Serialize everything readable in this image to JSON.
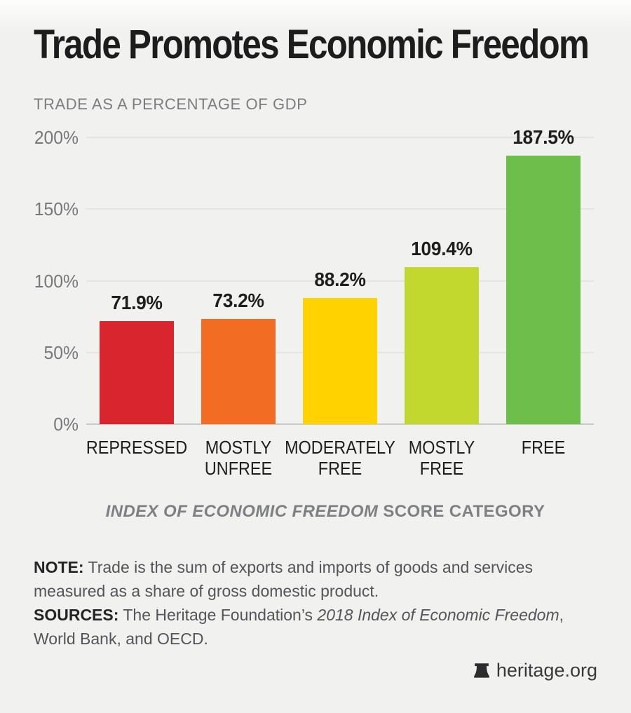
{
  "header": {
    "title": "Trade Promotes Economic Freedom",
    "subtitle": "TRADE AS A PERCENTAGE OF GDP"
  },
  "chart_data": {
    "type": "bar",
    "title": "TRADE AS A PERCENTAGE OF GDP",
    "categories": [
      "REPRESSED",
      "MOSTLY\nUNFREE",
      "MODERATELY\nFREE",
      "MOSTLY\nFREE",
      "FREE"
    ],
    "values": [
      71.9,
      73.2,
      88.2,
      109.4,
      187.5
    ],
    "value_labels": [
      "71.9%",
      "73.2%",
      "88.2%",
      "109.4%",
      "187.5%"
    ],
    "bar_colors": [
      "#d9252e",
      "#f26c23",
      "#ffd200",
      "#c3d82e",
      "#6ebe4b"
    ],
    "xlabel_italic": "INDEX OF ECONOMIC FREEDOM",
    "xlabel_rest": " SCORE CATEGORY",
    "ylabel": "",
    "ylim": [
      0,
      200
    ],
    "ytick_values": [
      0,
      50,
      100,
      150,
      200
    ],
    "ytick_labels": [
      "0%",
      "50%",
      "100%",
      "150%",
      "200%"
    ],
    "grid": true,
    "legend": "none"
  },
  "notes": {
    "note_label": "NOTE:",
    "note_text": " Trade is the sum of exports and imports of goods and services measured as a share of gross domestic product.",
    "sources_label": "SOURCES:",
    "sources_pre": " The Heritage Foundation’s ",
    "sources_italic": "2018 Index of Economic Freedom",
    "sources_post": ", World Bank, and OECD."
  },
  "footer": {
    "brand": "heritage.org",
    "brand_icon": "liberty-bell-icon"
  },
  "colors": {
    "background": "#f1f1ef",
    "title_text": "#1d1d1e",
    "muted_text": "#7c7d80",
    "note_text": "#54555a",
    "gridline": "#e4e4e1",
    "baseline": "#c9c9c6"
  }
}
